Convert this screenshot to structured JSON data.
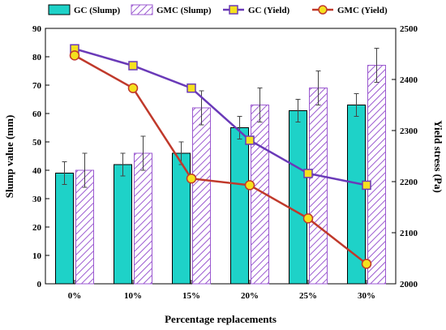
{
  "chart_data": {
    "type": "bar",
    "categories": [
      "0%",
      "10%",
      "15%",
      "20%",
      "25%",
      "30%"
    ],
    "xlabel": "Percentage replacements",
    "ylabel": "Slump value (mm)",
    "y2label": "Yield stress (Pa)",
    "ylim": [
      0,
      90
    ],
    "yticks": [
      0,
      10,
      20,
      30,
      40,
      50,
      60,
      70,
      80,
      90
    ],
    "y2lim": [
      2000,
      2500
    ],
    "y2ticks": [
      2000,
      2100,
      2200,
      2300,
      2400,
      2500
    ],
    "grid": false,
    "legend_position": "top",
    "bar_series": [
      {
        "name": "GC (Slump)",
        "values": [
          39,
          42,
          46,
          55,
          61,
          63
        ],
        "errors": [
          4,
          4,
          4,
          4,
          4,
          4
        ],
        "color": "#1ed2c8",
        "style": "solid"
      },
      {
        "name": "GMC (Slump)",
        "values": [
          40,
          46,
          62,
          63,
          69,
          77
        ],
        "errors": [
          6,
          6,
          6,
          6,
          6,
          6
        ],
        "color": "#9b59d0",
        "style": "hatched"
      }
    ],
    "line_series": [
      {
        "name": "GC (Yield)",
        "values": [
          2460,
          2427,
          2383,
          2281,
          2216,
          2193
        ],
        "color": "#6a3ab8",
        "marker": "square",
        "marker_color": "#f5e11e"
      },
      {
        "name": "GMC (Yield)",
        "values": [
          2447,
          2383,
          2206,
          2193,
          2128,
          2039
        ],
        "color": "#c0392b",
        "marker": "circle",
        "marker_color": "#f5e11e"
      }
    ]
  }
}
